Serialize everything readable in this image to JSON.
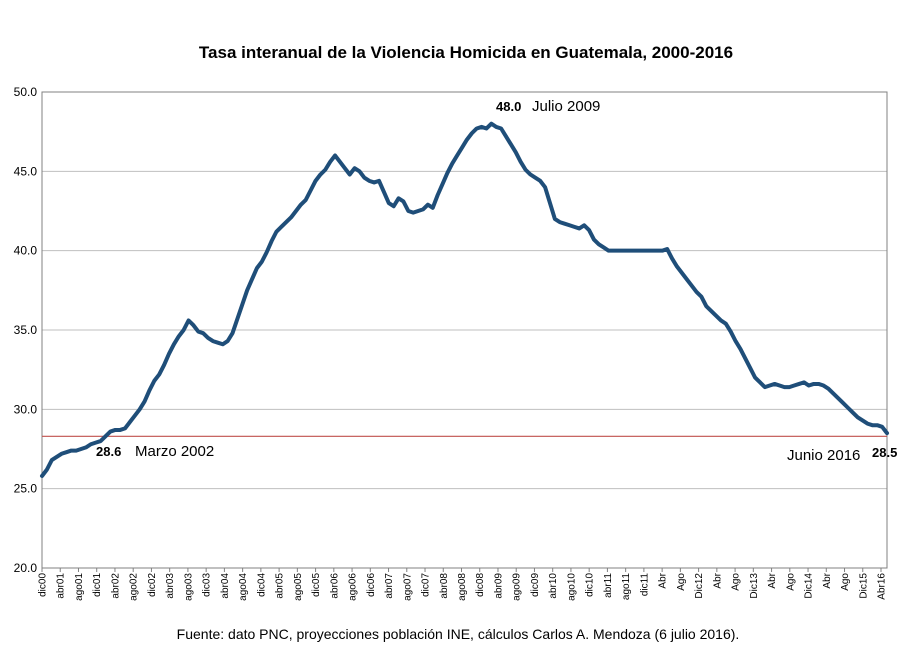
{
  "chart_data": {
    "type": "line",
    "title": "Tasa interanual de la Violencia Homicida en Guatemala, 2000-2016",
    "source": "Fuente: dato PNC, proyecciones población INE, cálculos Carlos A. Mendoza (6 julio 2016).",
    "xlabel": "",
    "ylabel": "",
    "ylim": [
      20.0,
      50.0
    ],
    "yticks": [
      "20.0",
      "25.0",
      "30.0",
      "35.0",
      "40.0",
      "45.0",
      "50.0"
    ],
    "grid": true,
    "legend": "none",
    "line_color": "#1f4e79",
    "reference_line": {
      "value": 28.3,
      "color": "#c0504d"
    },
    "x_tick_labels": [
      "dic00",
      "abr01",
      "ago01",
      "dic01",
      "abr02",
      "ago02",
      "dic02",
      "abr03",
      "ago03",
      "dic03",
      "abr04",
      "ago04",
      "dic04",
      "abr05",
      "ago05",
      "dic05",
      "abr06",
      "ago06",
      "dic06",
      "abr07",
      "ago07",
      "dic07",
      "abr08",
      "ago08",
      "dic08",
      "abr09",
      "ago09",
      "dic09",
      "abr10",
      "ago10",
      "dic10",
      "abr11",
      "ago11",
      "dic11",
      "Abr",
      "Ago",
      "Dic12",
      "Abr",
      "Ago",
      "Dic13",
      "Abr",
      "Ago",
      "Dic14",
      "Abr",
      "Ago",
      "Dic15",
      "Abr16"
    ],
    "series": [
      {
        "x_start": "dic00",
        "values": [
          25.8,
          26.2,
          26.8,
          27.0,
          27.2,
          27.3,
          27.4,
          27.4,
          27.5,
          27.6,
          27.8,
          27.9,
          28.0,
          28.3,
          28.6,
          28.7,
          28.7,
          28.8,
          29.2,
          29.6,
          30.0,
          30.5,
          31.2,
          31.8,
          32.2,
          32.8,
          33.5,
          34.1,
          34.6,
          35.0,
          35.6,
          35.3,
          34.9,
          34.8,
          34.5,
          34.3,
          34.2,
          34.1,
          34.3,
          34.8,
          35.7,
          36.6,
          37.5,
          38.2,
          38.9,
          39.3,
          39.9,
          40.6,
          41.2,
          41.5,
          41.8,
          42.1,
          42.5,
          42.9,
          43.2,
          43.8,
          44.4,
          44.8,
          45.1,
          45.6,
          46.0,
          45.6,
          45.2,
          44.8,
          45.2,
          45.0,
          44.6,
          44.4,
          44.3,
          44.4,
          43.7,
          43.0,
          42.8,
          43.3,
          43.1,
          42.5,
          42.4,
          42.5,
          42.6,
          42.9,
          42.7,
          43.5,
          44.2,
          44.9,
          45.5,
          46.0,
          46.5,
          47.0,
          47.4,
          47.7,
          47.8,
          47.7,
          48.0,
          47.8,
          47.7,
          47.2,
          46.7,
          46.2,
          45.6,
          45.1,
          44.8,
          44.6,
          44.4,
          44.0,
          43.0,
          42.0,
          41.8,
          41.7,
          41.6,
          41.5,
          41.4,
          41.6,
          41.3,
          40.7,
          40.4,
          40.2,
          40.0,
          40.0,
          40.0,
          40.0,
          40.0,
          40.0,
          40.0,
          40.0,
          40.0,
          40.0,
          40.0,
          40.0,
          40.1,
          39.5,
          39.0,
          38.6,
          38.2,
          37.8,
          37.4,
          37.1,
          36.5,
          36.2,
          35.9,
          35.6,
          35.4,
          34.9,
          34.3,
          33.8,
          33.2,
          32.6,
          32.0,
          31.7,
          31.4,
          31.5,
          31.6,
          31.5,
          31.4,
          31.4,
          31.5,
          31.6,
          31.7,
          31.5,
          31.6,
          31.6,
          31.5,
          31.3,
          31.0,
          30.7,
          30.4,
          30.1,
          29.8,
          29.5,
          29.3,
          29.1,
          29.0,
          29.0,
          28.9,
          28.5
        ]
      }
    ],
    "annotations": [
      {
        "value": "28.6",
        "label": "Marzo 2002"
      },
      {
        "value": "48.0",
        "label": "Julio 2009"
      },
      {
        "value": "28.5",
        "label": "Junio 2016"
      }
    ]
  }
}
